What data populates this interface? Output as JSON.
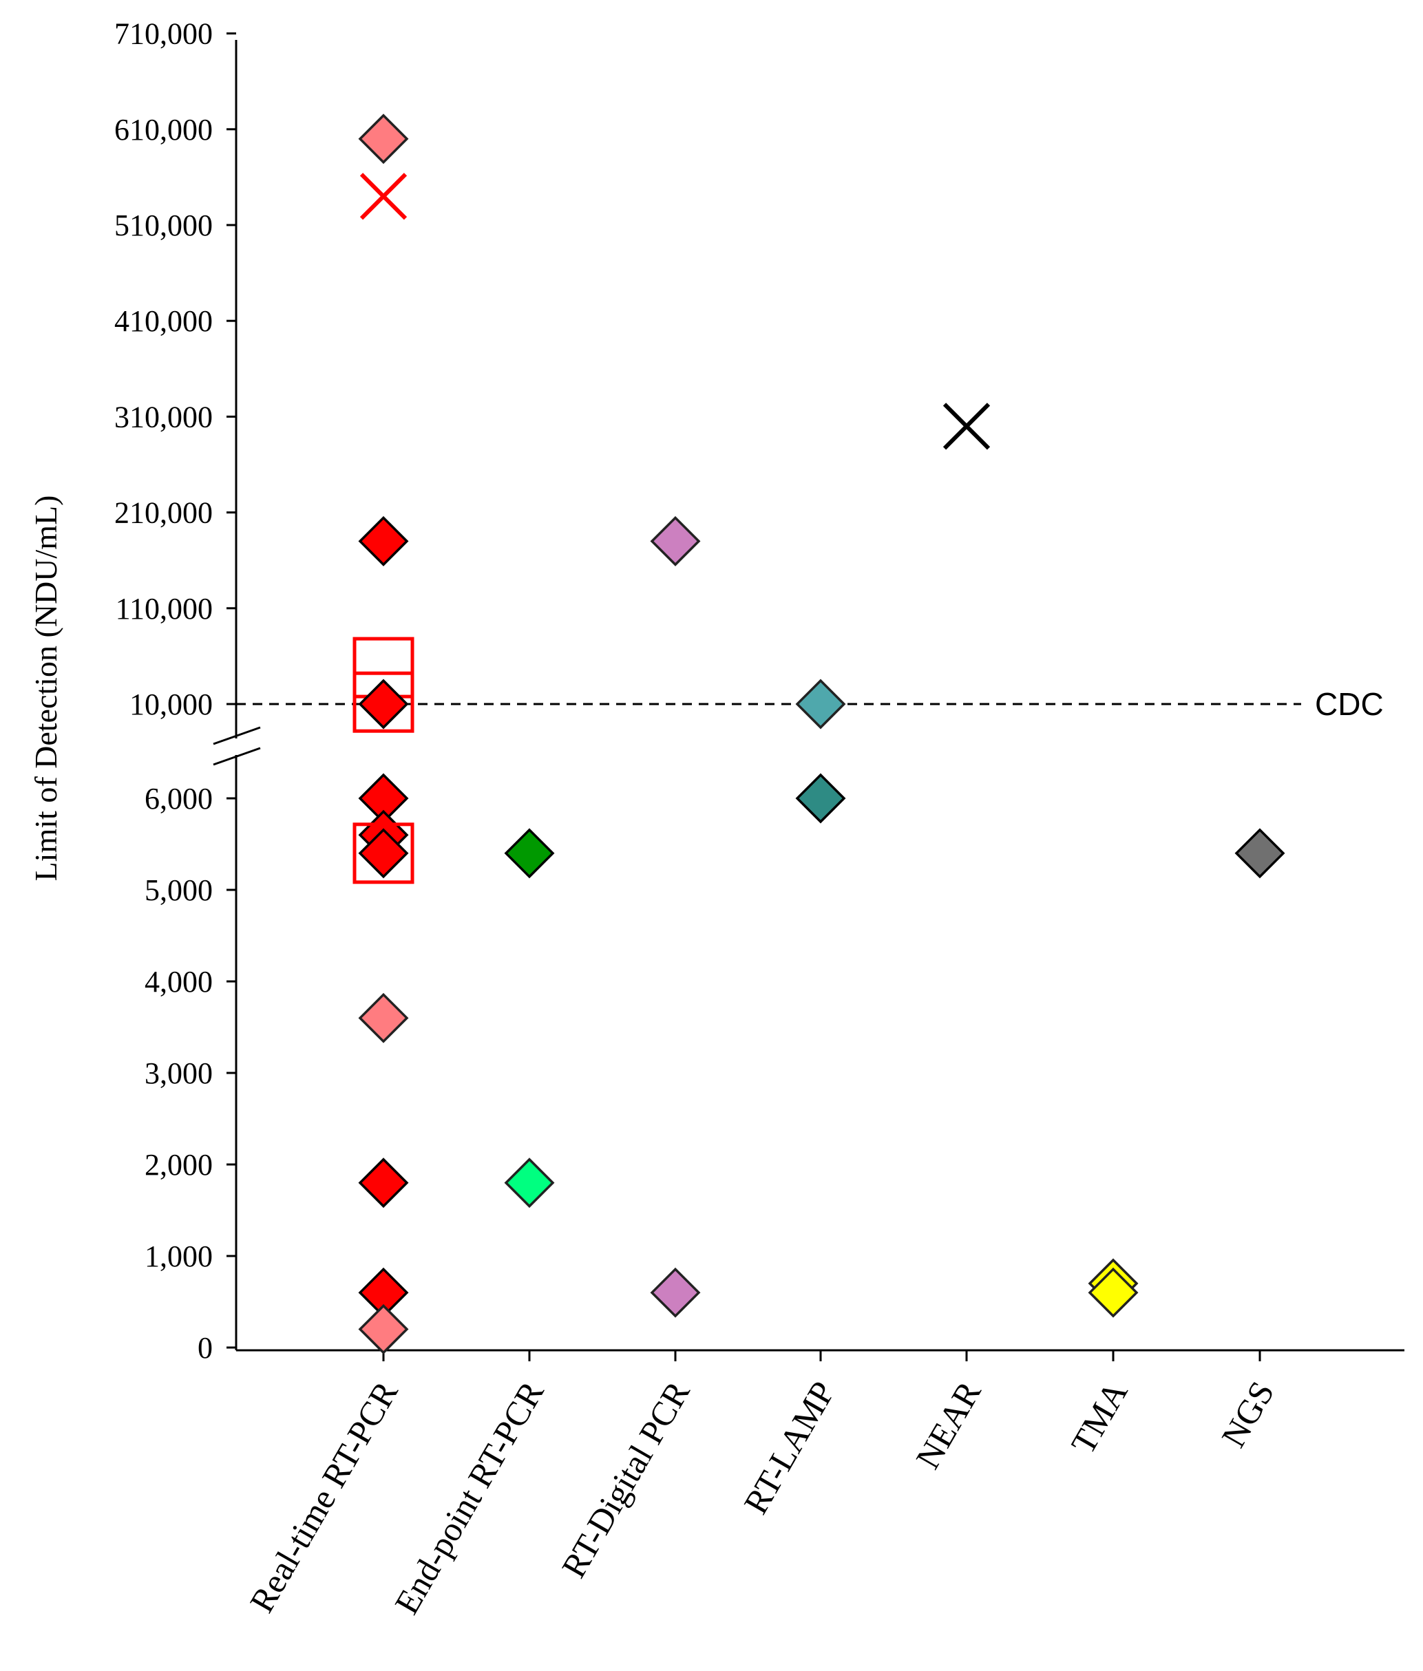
{
  "chart_data": {
    "type": "scatter",
    "title": "",
    "xlabel": "",
    "ylabel": "Limit of Detection (NDU/mL)",
    "grid": false,
    "legend": "none",
    "y_axis": {
      "broken": true,
      "lower_segment": {
        "range": [
          0,
          7000
        ],
        "ticks": [
          0,
          1000,
          2000,
          3000,
          4000,
          5000,
          6000
        ]
      },
      "upper_segment": {
        "range": [
          10000,
          710000
        ],
        "ticks": [
          10000,
          110000,
          210000,
          310000,
          410000,
          510000,
          610000,
          710000
        ]
      },
      "tick_labels": [
        "0",
        "1,000",
        "2,000",
        "3,000",
        "4,000",
        "5,000",
        "6,000",
        "10,000",
        "110,000",
        "210,000",
        "310,000",
        "410,000",
        "510,000",
        "610,000",
        "710,000"
      ]
    },
    "categories": [
      "Real-time RT-PCR",
      "End-point RT-PCR",
      "RT-Digital PCR",
      "RT-LAMP",
      "NEAR",
      "TMA",
      "NGS"
    ],
    "reference_lines": [
      {
        "label": "CDC",
        "value": 10000,
        "style": "dashed",
        "color": "#000000"
      }
    ],
    "points": [
      {
        "category": "Real-time RT-PCR",
        "value": 600000,
        "marker": "diamond",
        "fill": "#ff7c80",
        "stroke": "#222222"
      },
      {
        "category": "Real-time RT-PCR",
        "value": 540000,
        "marker": "x",
        "fill": "none",
        "stroke": "#ff0000"
      },
      {
        "category": "Real-time RT-PCR",
        "value": 180000,
        "marker": "diamond",
        "fill": "#ff0000",
        "stroke": "#000000"
      },
      {
        "category": "Real-time RT-PCR",
        "value": 48000,
        "marker": "square-open",
        "fill": "none",
        "stroke": "#ff0000"
      },
      {
        "category": "Real-time RT-PCR",
        "value": 12000,
        "marker": "square-open",
        "fill": "none",
        "stroke": "#ff0000"
      },
      {
        "category": "Real-time RT-PCR",
        "value": 10000,
        "marker": "diamond",
        "fill": "#ff0000",
        "stroke": "#000000"
      },
      {
        "category": "Real-time RT-PCR",
        "value": 6000,
        "marker": "diamond",
        "fill": "#ff0000",
        "stroke": "#000000"
      },
      {
        "category": "Real-time RT-PCR",
        "value": 5600,
        "marker": "diamond",
        "fill": "#ff0000",
        "stroke": "#000000"
      },
      {
        "category": "Real-time RT-PCR",
        "value": 5400,
        "marker": "diamond",
        "fill": "#ff0000",
        "stroke": "#000000"
      },
      {
        "category": "Real-time RT-PCR",
        "value": 5400,
        "marker": "square-open",
        "fill": "none",
        "stroke": "#ff0000"
      },
      {
        "category": "Real-time RT-PCR",
        "value": 3600,
        "marker": "diamond",
        "fill": "#ff7c80",
        "stroke": "#222222"
      },
      {
        "category": "Real-time RT-PCR",
        "value": 1800,
        "marker": "diamond",
        "fill": "#ff0000",
        "stroke": "#000000"
      },
      {
        "category": "Real-time RT-PCR",
        "value": 600,
        "marker": "diamond",
        "fill": "#ff0000",
        "stroke": "#000000"
      },
      {
        "category": "Real-time RT-PCR",
        "value": 200,
        "marker": "diamond",
        "fill": "#ff7c80",
        "stroke": "#222222"
      },
      {
        "category": "End-point RT-PCR",
        "value": 5400,
        "marker": "diamond",
        "fill": "#009900",
        "stroke": "#000000"
      },
      {
        "category": "End-point RT-PCR",
        "value": 1800,
        "marker": "diamond",
        "fill": "#00ff80",
        "stroke": "#222222"
      },
      {
        "category": "RT-Digital PCR",
        "value": 180000,
        "marker": "diamond",
        "fill": "#cc80c0",
        "stroke": "#222222"
      },
      {
        "category": "RT-Digital PCR",
        "value": 600,
        "marker": "diamond",
        "fill": "#cc80c0",
        "stroke": "#222222"
      },
      {
        "category": "RT-LAMP",
        "value": 10000,
        "marker": "diamond",
        "fill": "#4fa8ac",
        "stroke": "#222222"
      },
      {
        "category": "RT-LAMP",
        "value": 6000,
        "marker": "diamond",
        "fill": "#2e8b84",
        "stroke": "#000000"
      },
      {
        "category": "NEAR",
        "value": 300000,
        "marker": "x",
        "fill": "none",
        "stroke": "#000000"
      },
      {
        "category": "TMA",
        "value": 700,
        "marker": "diamond",
        "fill": "#ffff00",
        "stroke": "#222222"
      },
      {
        "category": "TMA",
        "value": 600,
        "marker": "diamond",
        "fill": "#ffff00",
        "stroke": "#222222"
      },
      {
        "category": "NGS",
        "value": 5400,
        "marker": "diamond",
        "fill": "#707070",
        "stroke": "#000000"
      }
    ]
  }
}
